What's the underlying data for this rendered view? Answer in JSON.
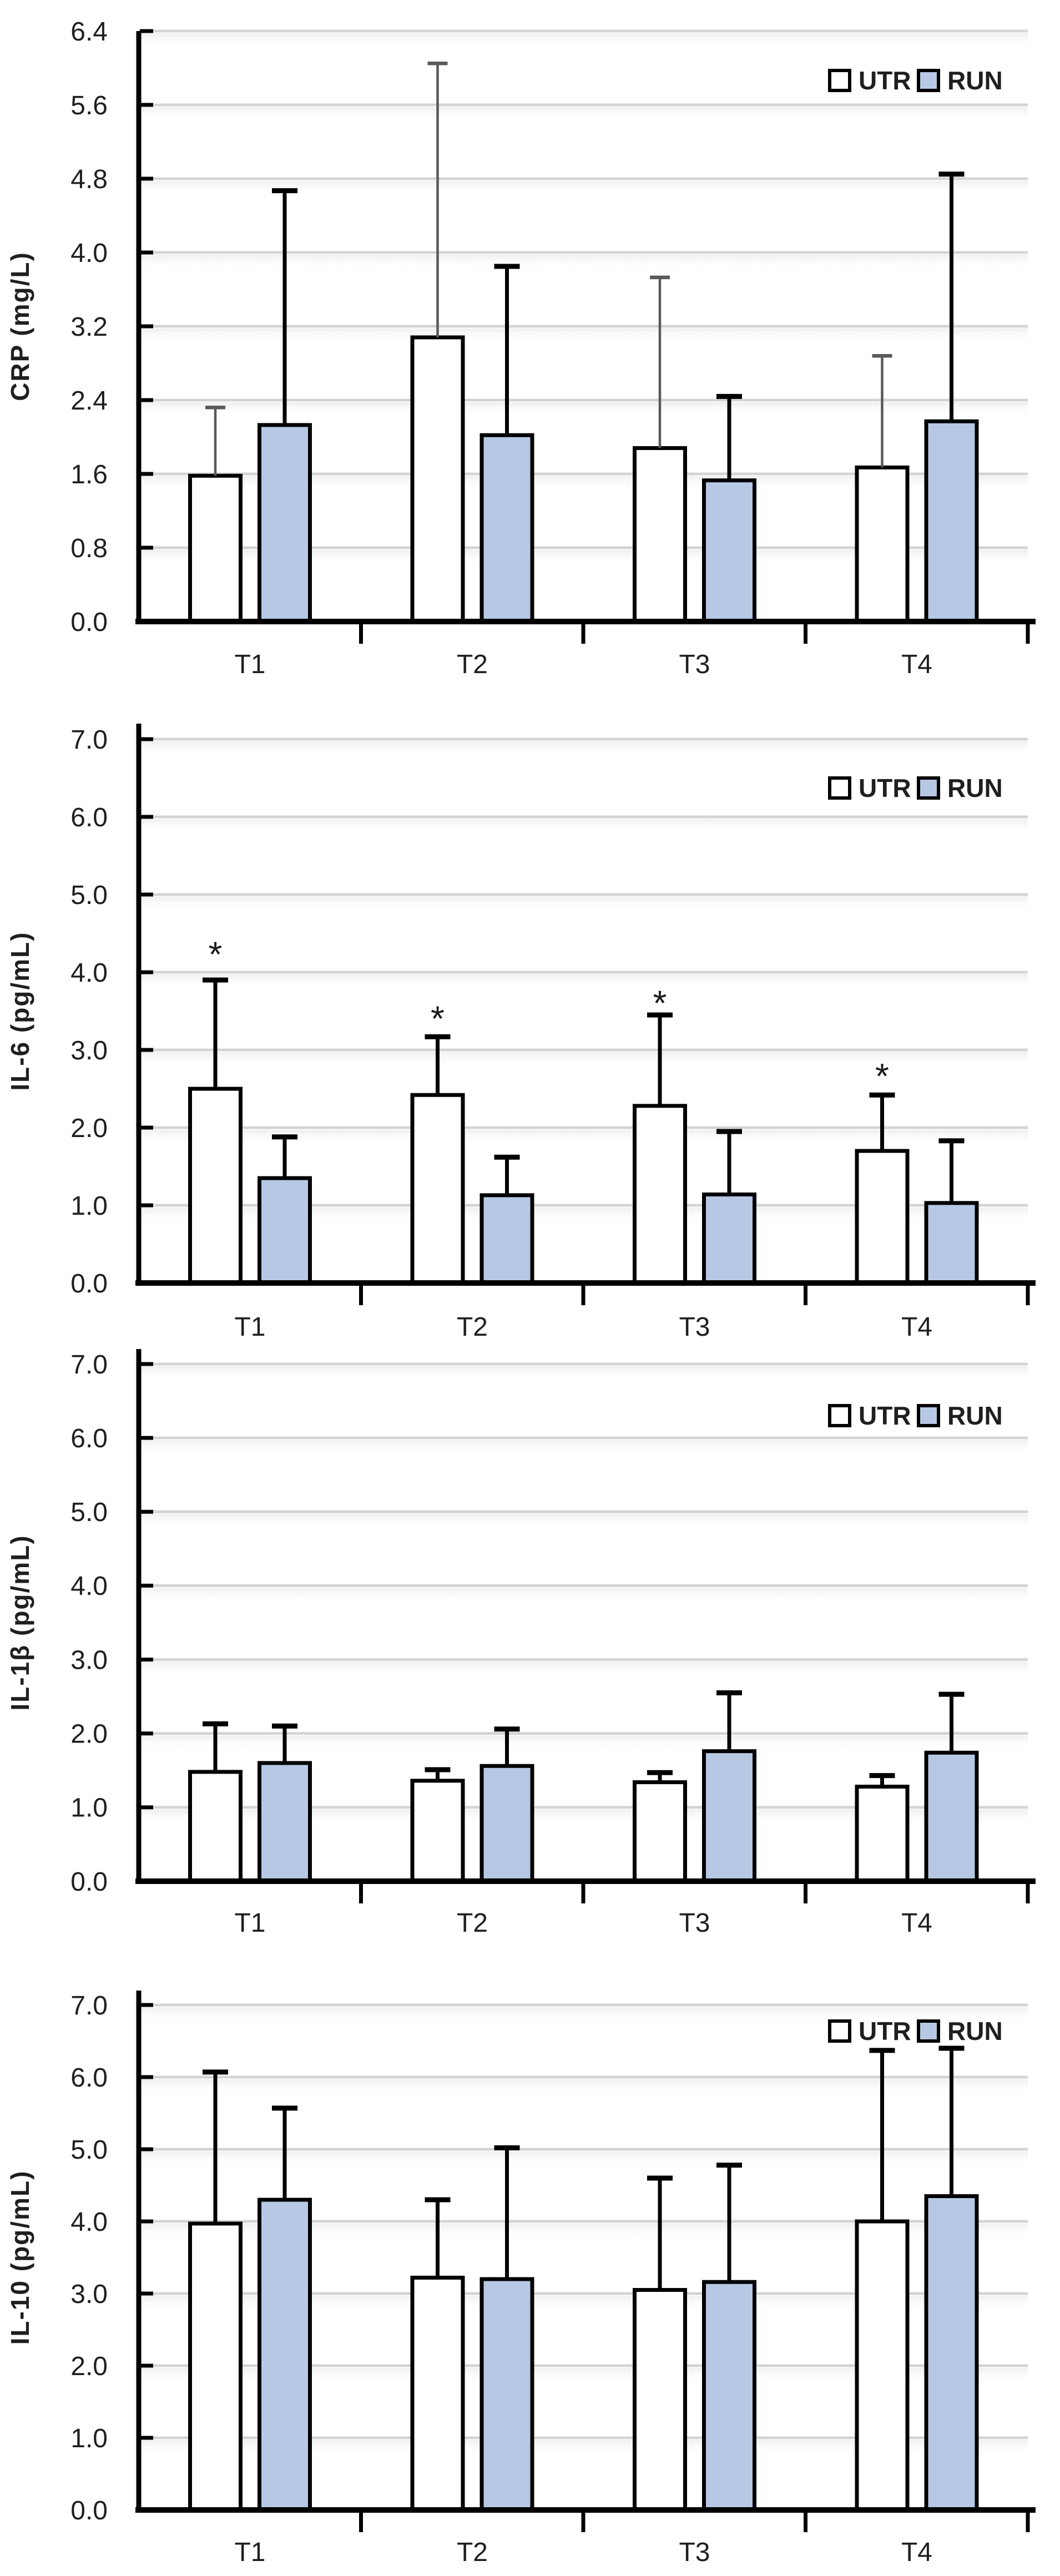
{
  "figure": {
    "description": "Four stacked bar charts comparing UTR and RUN groups across timepoints T1-T4",
    "legend": {
      "items": [
        {
          "label": "UTR",
          "fill": "#ffffff"
        },
        {
          "label": "RUN",
          "fill": "#b6c8e4"
        }
      ]
    }
  },
  "colors": {
    "bar_border": "#000000",
    "run_fill": "#b6c8e4",
    "utr_fill": "#ffffff",
    "gridline": "#d4d4d4",
    "axis": "#000000",
    "text": "#1f1f1f",
    "gray_error": "#595959"
  },
  "chart_data": [
    {
      "type": "bar",
      "title": "",
      "ylabel": "CRP (mg/L)",
      "xlabel": "",
      "categories": [
        "T1",
        "T2",
        "T3",
        "T4"
      ],
      "ylim": [
        0,
        6.4
      ],
      "ytick_step": 0.8,
      "ytick_labels": [
        "0.0",
        "0.8",
        "1.6",
        "2.4",
        "3.2",
        "4.0",
        "4.8",
        "5.6",
        "6.4"
      ],
      "grid": true,
      "legend": [
        "UTR",
        "RUN"
      ],
      "legend_position": "top-right",
      "series": [
        {
          "name": "UTR",
          "fill": "#ffffff",
          "error_color": "#595959",
          "values": [
            1.58,
            3.08,
            1.88,
            1.67
          ],
          "error_tops": [
            2.32,
            6.05,
            3.73,
            2.88
          ]
        },
        {
          "name": "RUN",
          "fill": "#b6c8e4",
          "error_color": "#000000",
          "values": [
            2.13,
            2.02,
            1.53,
            2.17
          ],
          "error_tops": [
            4.67,
            3.85,
            2.44,
            4.85
          ]
        }
      ],
      "annotations": []
    },
    {
      "type": "bar",
      "title": "",
      "ylabel": "IL-6 (pg/mL)",
      "xlabel": "",
      "categories": [
        "T1",
        "T2",
        "T3",
        "T4"
      ],
      "ylim": [
        0,
        7.0
      ],
      "ytick_step": 1.0,
      "ytick_labels": [
        "0.0",
        "1.0",
        "2.0",
        "3.0",
        "4.0",
        "5.0",
        "6.0",
        "7.0"
      ],
      "grid": true,
      "legend": [
        "UTR",
        "RUN"
      ],
      "legend_position": "top-right",
      "series": [
        {
          "name": "UTR",
          "fill": "#ffffff",
          "error_color": "#000000",
          "values": [
            2.5,
            2.42,
            2.28,
            1.7
          ],
          "error_tops": [
            3.9,
            3.17,
            3.45,
            2.42
          ]
        },
        {
          "name": "RUN",
          "fill": "#b6c8e4",
          "error_color": "#000000",
          "values": [
            1.35,
            1.13,
            1.14,
            1.03
          ],
          "error_tops": [
            1.88,
            1.62,
            1.95,
            1.83
          ]
        }
      ],
      "annotations": [
        {
          "text": "*",
          "series": "UTR",
          "category": "T1",
          "y": 4.35
        },
        {
          "text": "*",
          "series": "UTR",
          "category": "T2",
          "y": 3.52
        },
        {
          "text": "*",
          "series": "UTR",
          "category": "T3",
          "y": 3.72
        },
        {
          "text": "*",
          "series": "UTR",
          "category": "T4",
          "y": 2.78
        }
      ]
    },
    {
      "type": "bar",
      "title": "",
      "ylabel": "IL-1β (pg/mL)",
      "xlabel": "",
      "categories": [
        "T1",
        "T2",
        "T3",
        "T4"
      ],
      "ylim": [
        0,
        7.0
      ],
      "ytick_step": 1.0,
      "ytick_labels": [
        "0.0",
        "1.0",
        "2.0",
        "3.0",
        "4.0",
        "5.0",
        "6.0",
        "7.0"
      ],
      "grid": true,
      "legend": [
        "UTR",
        "RUN"
      ],
      "legend_position": "top-right",
      "series": [
        {
          "name": "UTR",
          "fill": "#ffffff",
          "error_color": "#000000",
          "values": [
            1.48,
            1.36,
            1.34,
            1.28
          ],
          "error_tops": [
            2.13,
            1.51,
            1.47,
            1.43
          ]
        },
        {
          "name": "RUN",
          "fill": "#b6c8e4",
          "error_color": "#000000",
          "values": [
            1.6,
            1.56,
            1.76,
            1.74
          ],
          "error_tops": [
            2.1,
            2.06,
            2.55,
            2.53
          ]
        }
      ],
      "annotations": []
    },
    {
      "type": "bar",
      "title": "",
      "ylabel": "IL-10 (pg/mL)",
      "xlabel": "",
      "categories": [
        "T1",
        "T2",
        "T3",
        "T4"
      ],
      "ylim": [
        0,
        7.0
      ],
      "ytick_step": 1.0,
      "ytick_labels": [
        "0.0",
        "1.0",
        "2.0",
        "3.0",
        "4.0",
        "5.0",
        "6.0",
        "7.0"
      ],
      "grid": true,
      "legend": [
        "UTR",
        "RUN"
      ],
      "legend_position": "top-right",
      "series": [
        {
          "name": "UTR",
          "fill": "#ffffff",
          "error_color": "#000000",
          "values": [
            3.97,
            3.22,
            3.05,
            4.0
          ],
          "error_tops": [
            6.07,
            4.3,
            4.6,
            6.37
          ]
        },
        {
          "name": "RUN",
          "fill": "#b6c8e4",
          "error_color": "#000000",
          "values": [
            4.3,
            3.2,
            3.16,
            4.35
          ],
          "error_tops": [
            5.57,
            5.02,
            4.78,
            6.4
          ]
        }
      ],
      "annotations": []
    }
  ]
}
